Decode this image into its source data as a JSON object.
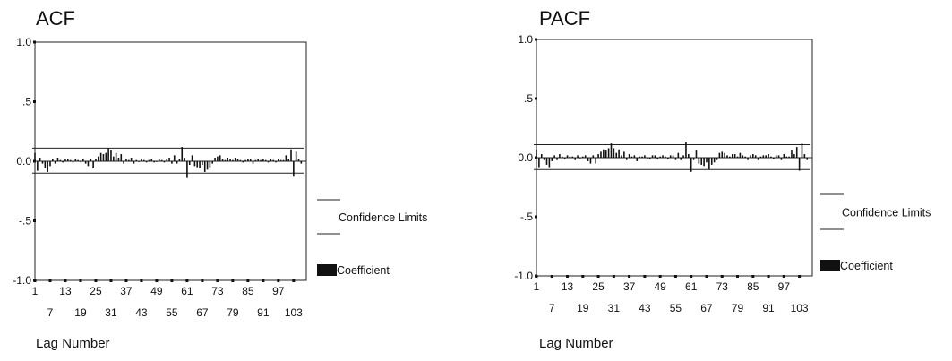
{
  "charts": [
    {
      "title": "ACF",
      "xlabel": "Lag Number",
      "legend": {
        "limits_label": "Confidence Limits",
        "coef_label": "Coefficient"
      },
      "chart_data": {
        "type": "bar",
        "title": "ACF",
        "xlabel": "Lag Number",
        "ylabel": "",
        "ylim": [
          -1.0,
          1.0
        ],
        "yticks": [
          1.0,
          0.5,
          0.0,
          -0.5,
          -1.0
        ],
        "ytick_labels": [
          "1.0",
          ".5",
          "0.0",
          "-.5",
          "-1.0"
        ],
        "xticks_top": [
          1,
          13,
          25,
          37,
          49,
          61,
          73,
          85,
          97
        ],
        "xticks_bottom": [
          7,
          19,
          31,
          43,
          55,
          67,
          79,
          91,
          103
        ],
        "xlim": [
          1,
          108
        ],
        "confidence_limits": [
          0.11,
          -0.1
        ],
        "lags": [
          1,
          2,
          3,
          4,
          5,
          6,
          7,
          8,
          9,
          10,
          11,
          12,
          13,
          14,
          15,
          16,
          17,
          18,
          19,
          20,
          21,
          22,
          23,
          24,
          25,
          26,
          27,
          28,
          29,
          30,
          31,
          32,
          33,
          34,
          35,
          36,
          37,
          38,
          39,
          40,
          41,
          42,
          43,
          44,
          45,
          46,
          47,
          48,
          49,
          50,
          51,
          52,
          53,
          54,
          55,
          56,
          57,
          58,
          59,
          60,
          61,
          62,
          63,
          64,
          65,
          66,
          67,
          68,
          69,
          70,
          71,
          72,
          73,
          74,
          75,
          76,
          77,
          78,
          79,
          80,
          81,
          82,
          83,
          84,
          85,
          86,
          87,
          88,
          89,
          90,
          91,
          92,
          93,
          94,
          95,
          96,
          97,
          98,
          99,
          100,
          101,
          102,
          103,
          104,
          105,
          106
        ],
        "values": [
          0.07,
          -0.08,
          0.03,
          -0.02,
          -0.06,
          -0.09,
          -0.04,
          0.02,
          -0.02,
          0.03,
          0.01,
          -0.01,
          0.02,
          0.02,
          0.01,
          -0.01,
          0.02,
          0.01,
          0.0,
          0.02,
          -0.02,
          -0.04,
          0.02,
          -0.06,
          0.02,
          0.04,
          0.07,
          0.06,
          0.07,
          0.11,
          0.09,
          0.04,
          0.07,
          0.03,
          0.06,
          -0.02,
          0.02,
          0.01,
          0.03,
          -0.02,
          0.01,
          0.0,
          0.02,
          0.01,
          -0.01,
          0.01,
          0.02,
          -0.01,
          0.0,
          0.02,
          0.01,
          -0.01,
          0.02,
          0.03,
          -0.02,
          0.05,
          -0.02,
          0.02,
          0.12,
          0.03,
          -0.14,
          -0.03,
          0.05,
          -0.04,
          -0.05,
          -0.06,
          -0.03,
          -0.09,
          -0.07,
          -0.05,
          -0.02,
          0.03,
          0.04,
          0.05,
          0.02,
          0.01,
          0.03,
          0.02,
          0.01,
          0.03,
          0.02,
          0.01,
          -0.01,
          0.01,
          0.02,
          0.02,
          -0.02,
          0.01,
          0.02,
          0.01,
          0.02,
          0.01,
          -0.01,
          0.02,
          0.01,
          -0.01,
          0.02,
          0.01,
          0.01,
          0.05,
          0.02,
          0.1,
          -0.13,
          0.08,
          0.02,
          -0.02
        ]
      }
    },
    {
      "title": "PACF",
      "xlabel": "Lag Number",
      "legend": {
        "limits_label": "Confidence Limits",
        "coef_label": "Coefficient"
      },
      "chart_data": {
        "type": "bar",
        "title": "PACF",
        "xlabel": "Lag Number",
        "ylabel": "",
        "ylim": [
          -1.0,
          1.0
        ],
        "yticks": [
          1.0,
          0.5,
          0.0,
          -0.5,
          -1.0
        ],
        "ytick_labels": [
          "1.0",
          ".5",
          "0.0",
          "-.5",
          "-1.0"
        ],
        "xticks_top": [
          1,
          13,
          25,
          37,
          49,
          61,
          73,
          85,
          97
        ],
        "xticks_bottom": [
          7,
          19,
          31,
          43,
          55,
          67,
          79,
          91,
          103
        ],
        "xlim": [
          1,
          108
        ],
        "confidence_limits": [
          0.11,
          -0.1
        ],
        "lags": [
          1,
          2,
          3,
          4,
          5,
          6,
          7,
          8,
          9,
          10,
          11,
          12,
          13,
          14,
          15,
          16,
          17,
          18,
          19,
          20,
          21,
          22,
          23,
          24,
          25,
          26,
          27,
          28,
          29,
          30,
          31,
          32,
          33,
          34,
          35,
          36,
          37,
          38,
          39,
          40,
          41,
          42,
          43,
          44,
          45,
          46,
          47,
          48,
          49,
          50,
          51,
          52,
          53,
          54,
          55,
          56,
          57,
          58,
          59,
          60,
          61,
          62,
          63,
          64,
          65,
          66,
          67,
          68,
          69,
          70,
          71,
          72,
          73,
          74,
          75,
          76,
          77,
          78,
          79,
          80,
          81,
          82,
          83,
          84,
          85,
          86,
          87,
          88,
          89,
          90,
          91,
          92,
          93,
          94,
          95,
          96,
          97,
          98,
          99,
          100,
          101,
          102,
          103,
          104,
          105,
          106
        ],
        "values": [
          0.07,
          -0.08,
          0.03,
          -0.02,
          -0.06,
          -0.08,
          -0.03,
          0.02,
          -0.02,
          0.03,
          0.01,
          -0.01,
          0.02,
          0.01,
          0.01,
          -0.02,
          0.02,
          0.0,
          0.01,
          0.02,
          -0.03,
          -0.05,
          0.02,
          -0.05,
          0.03,
          0.05,
          0.07,
          0.06,
          0.08,
          0.12,
          0.08,
          0.04,
          0.07,
          0.02,
          0.05,
          -0.02,
          0.03,
          0.01,
          0.02,
          -0.03,
          0.01,
          0.01,
          0.02,
          0.0,
          -0.01,
          0.02,
          0.02,
          -0.01,
          0.01,
          0.02,
          0.01,
          -0.01,
          0.02,
          0.02,
          -0.02,
          0.04,
          -0.02,
          0.02,
          0.13,
          0.03,
          -0.12,
          -0.02,
          0.06,
          -0.05,
          -0.06,
          -0.07,
          -0.04,
          -0.1,
          -0.06,
          -0.04,
          -0.02,
          0.04,
          0.05,
          0.04,
          0.02,
          0.01,
          0.03,
          0.03,
          0.01,
          0.04,
          0.02,
          0.01,
          -0.02,
          0.02,
          0.03,
          0.02,
          -0.02,
          0.01,
          0.02,
          0.02,
          0.03,
          0.01,
          -0.01,
          0.02,
          0.02,
          -0.02,
          0.03,
          0.01,
          0.01,
          0.06,
          0.03,
          0.09,
          -0.11,
          0.12,
          0.03,
          -0.02
        ]
      }
    }
  ]
}
